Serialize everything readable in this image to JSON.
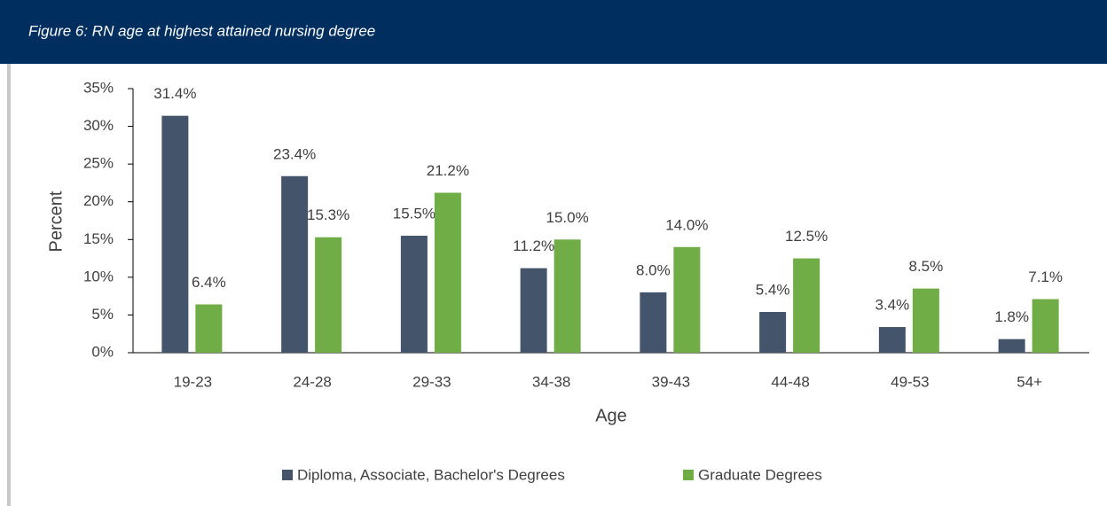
{
  "chart_data": {
    "type": "bar",
    "title": "Figure 6: RN age at highest attained nursing degree",
    "categories": [
      "19-23",
      "24-28",
      "29-33",
      "34-38",
      "39-43",
      "44-48",
      "49-53",
      "54+"
    ],
    "series": [
      {
        "name": "Diploma, Associate, Bachelor's Degrees",
        "color": "#44546a",
        "values": [
          31.4,
          23.4,
          15.5,
          11.2,
          8.0,
          5.4,
          3.4,
          1.8
        ],
        "value_labels": [
          "31.4%",
          "23.4%",
          "15.5%",
          "11.2%",
          "8.0%",
          "5.4%",
          "3.4%",
          "1.8%"
        ]
      },
      {
        "name": "Graduate Degrees",
        "color": "#70ad47",
        "values": [
          6.4,
          15.3,
          21.2,
          15.0,
          14.0,
          12.5,
          8.5,
          7.1
        ],
        "value_labels": [
          "6.4%",
          "15.3%",
          "21.2%",
          "15.0%",
          "14.0%",
          "12.5%",
          "8.5%",
          "7.1%"
        ]
      }
    ],
    "y_label": "Percent",
    "x_label": "Age",
    "ylim": [
      0,
      35
    ],
    "yticks": [
      {
        "value": 0,
        "label": "0%"
      },
      {
        "value": 5,
        "label": "5%"
      },
      {
        "value": 10,
        "label": "10%"
      },
      {
        "value": 15,
        "label": "15%"
      },
      {
        "value": 20,
        "label": "20%"
      },
      {
        "value": 25,
        "label": "25%"
      },
      {
        "value": 30,
        "label": "30%"
      },
      {
        "value": 35,
        "label": "35%"
      }
    ],
    "legend": "bottom"
  }
}
